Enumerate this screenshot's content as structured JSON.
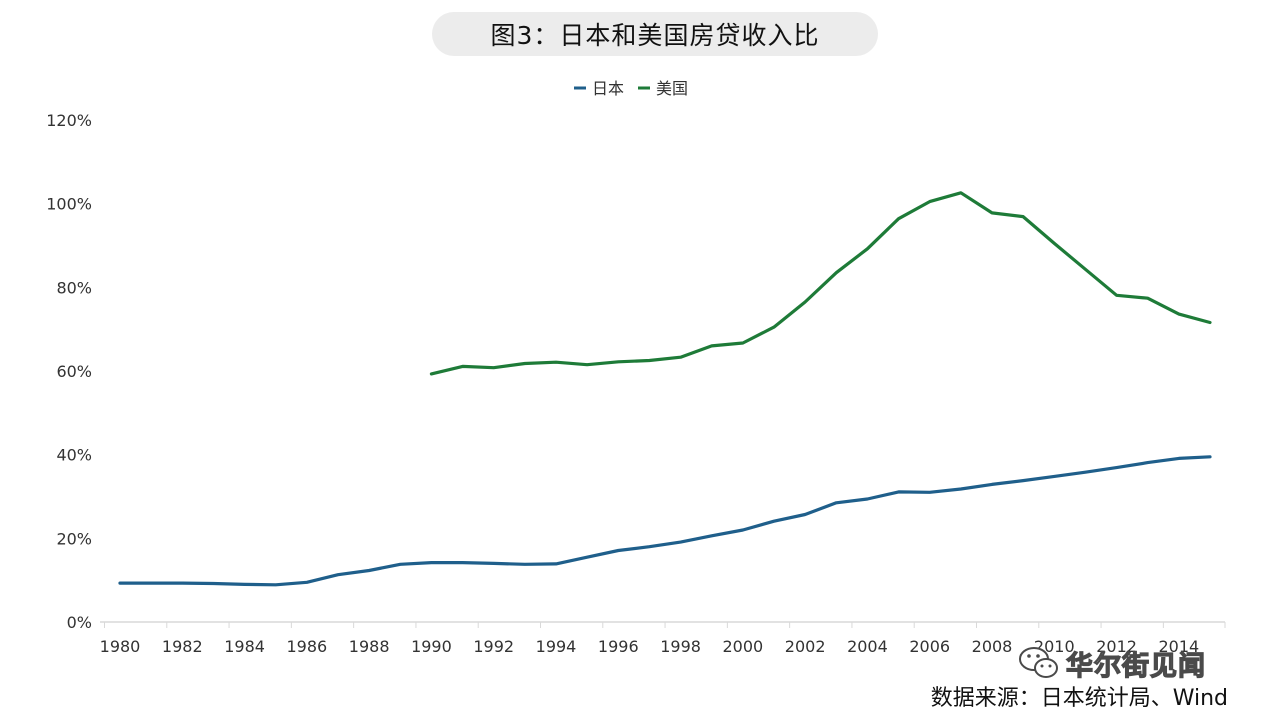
{
  "title": "图3：日本和美国房贷收入比",
  "source": "数据来源：日本统计局、Wind",
  "watermark": {
    "text": "华尔街见闻",
    "icon": "wechat-icon"
  },
  "chart_data": {
    "type": "line",
    "title": "图3：日本和美国房贷收入比",
    "xlabel": "",
    "ylabel": "",
    "ylim": [
      0,
      1.2
    ],
    "xlim": [
      1980,
      2015
    ],
    "x_ticks": [
      "1980",
      "1982",
      "1984",
      "1986",
      "1988",
      "1990",
      "1992",
      "1994",
      "1996",
      "1998",
      "2000",
      "2002",
      "2004",
      "2006",
      "2008",
      "2010",
      "2012",
      "2014"
    ],
    "y_ticks": [
      "0%",
      "20%",
      "40%",
      "60%",
      "80%",
      "100%",
      "120%"
    ],
    "grid": false,
    "legend_position": "top-center",
    "series": [
      {
        "name": "日本",
        "color": "#1f5f8b",
        "x": [
          1980,
          1981,
          1982,
          1983,
          1984,
          1985,
          1986,
          1987,
          1988,
          1989,
          1990,
          1991,
          1992,
          1993,
          1994,
          1995,
          1996,
          1997,
          1998,
          1999,
          2000,
          2001,
          2002,
          2003,
          2004,
          2005,
          2006,
          2007,
          2008,
          2009,
          2010,
          2011,
          2012,
          2013,
          2014,
          2015
        ],
        "values": [
          0.093,
          0.093,
          0.093,
          0.092,
          0.09,
          0.089,
          0.095,
          0.113,
          0.123,
          0.138,
          0.142,
          0.142,
          0.14,
          0.138,
          0.139,
          0.155,
          0.171,
          0.18,
          0.191,
          0.206,
          0.22,
          0.241,
          0.257,
          0.285,
          0.294,
          0.311,
          0.31,
          0.318,
          0.329,
          0.338,
          0.348,
          0.358,
          0.369,
          0.381,
          0.391,
          0.395
        ]
      },
      {
        "name": "美国",
        "color": "#1e7b38",
        "x": [
          1990,
          1991,
          1992,
          1993,
          1994,
          1995,
          1996,
          1997,
          1998,
          1999,
          2000,
          2001,
          2002,
          2003,
          2004,
          2005,
          2006,
          2007,
          2008,
          2009,
          2010,
          2011,
          2012,
          2013,
          2014,
          2015
        ],
        "values": [
          0.593,
          0.611,
          0.608,
          0.618,
          0.621,
          0.615,
          0.622,
          0.625,
          0.633,
          0.66,
          0.667,
          0.705,
          0.765,
          0.835,
          0.892,
          0.964,
          1.005,
          1.026,
          0.978,
          0.969,
          0.905,
          0.843,
          0.781,
          0.774,
          0.736,
          0.716
        ]
      }
    ]
  }
}
